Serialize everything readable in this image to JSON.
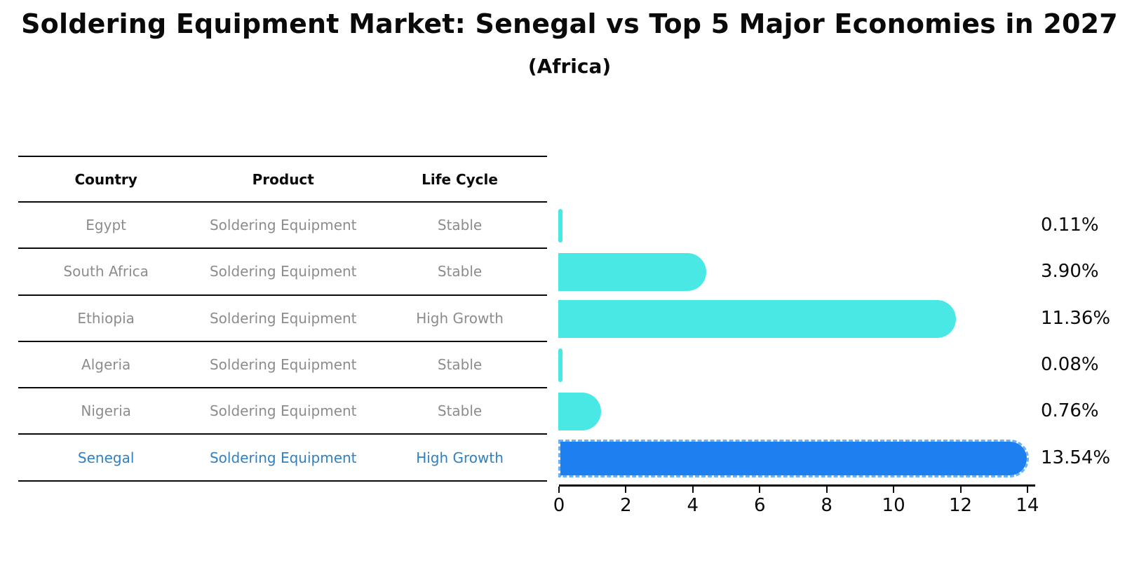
{
  "title": "Soldering Equipment Market: Senegal vs Top 5 Major Economies in 2027",
  "subtitle": "(Africa)",
  "table": {
    "headers": [
      "Country",
      "Product",
      "Life Cycle"
    ],
    "rows": [
      {
        "country": "Egypt",
        "product": "Soldering Equipment",
        "life_cycle": "Stable",
        "highlight": false
      },
      {
        "country": "South Africa",
        "product": "Soldering Equipment",
        "life_cycle": "Stable",
        "highlight": false
      },
      {
        "country": "Ethiopia",
        "product": "Soldering Equipment",
        "life_cycle": "High Growth",
        "highlight": false
      },
      {
        "country": "Algeria",
        "product": "Soldering Equipment",
        "life_cycle": "Stable",
        "highlight": false
      },
      {
        "country": "Nigeria",
        "product": "Soldering Equipment",
        "life_cycle": "Stable",
        "highlight": false
      },
      {
        "country": "Senegal",
        "product": "Soldering Equipment",
        "life_cycle": "High Growth",
        "highlight": true
      }
    ]
  },
  "chart_data": {
    "type": "bar",
    "orientation": "horizontal",
    "title": "Soldering Equipment Market: Senegal vs Top 5 Major Economies in 2027",
    "subtitle": "(Africa)",
    "categories": [
      "Egypt",
      "South Africa",
      "Ethiopia",
      "Algeria",
      "Nigeria",
      "Senegal"
    ],
    "values": [
      0.11,
      3.9,
      11.36,
      0.08,
      0.76,
      13.54
    ],
    "value_labels": [
      "0.11%",
      "3.90%",
      "11.36%",
      "0.08%",
      "0.76%",
      "13.54%"
    ],
    "xlabel": "",
    "ylabel": "",
    "xlim": [
      0,
      14
    ],
    "x_ticks": [
      0,
      2,
      4,
      6,
      8,
      10,
      12,
      14
    ],
    "grid": false,
    "legend": "none",
    "highlight_index": 5,
    "bar_color": "#4ae8e4",
    "highlight_color": "#1e80f0"
  },
  "colors": {
    "background": "#ffffff",
    "bar_cyan": "#4ae8e4",
    "bar_blue": "#1e80f0",
    "highlight_text": "#2f81c4",
    "muted_text": "#8c8c8c",
    "axis_text": "#0a0a0a"
  }
}
